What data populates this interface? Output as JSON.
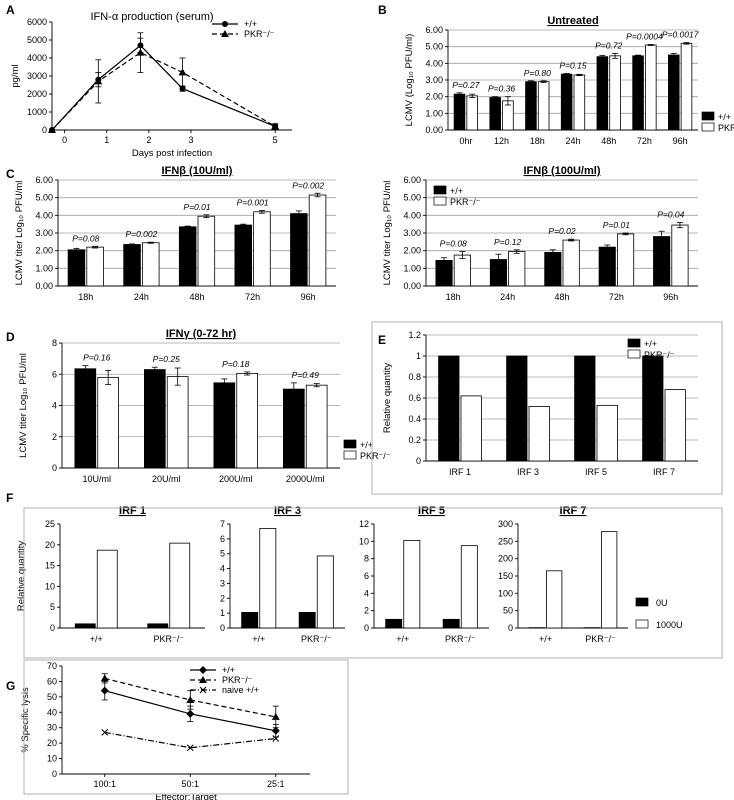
{
  "panels": [
    {
      "id": "A",
      "label": "A",
      "type": "line",
      "title": "IFN-α production (serum)",
      "title_underline": false,
      "xlabel": "Days post infection",
      "ylabel": "pg/ml",
      "ylim": [
        0,
        6000
      ],
      "yticks": [
        "0",
        "1000",
        "2000",
        "3000",
        "4000",
        "5000",
        "6000"
      ],
      "xlim": [
        -0.3,
        5.4
      ],
      "xticks": [
        "0",
        "1",
        "2",
        "3",
        "5"
      ],
      "xtick_values": [
        0,
        1,
        2,
        3,
        5
      ],
      "colors": {
        "wt": "#000000",
        "ko": "#000000"
      },
      "series": [
        {
          "name": "+/+",
          "style": "solid",
          "marker": "circle",
          "x": [
            -0.3,
            0.8,
            1.8,
            2.8,
            5
          ],
          "y": [
            0,
            2800,
            4700,
            2300,
            200
          ],
          "err": [
            0,
            400,
            400,
            150,
            100
          ]
        },
        {
          "name": "PKR⁻/⁻",
          "style": "dashed",
          "marker": "triangle",
          "x": [
            -0.3,
            0.8,
            1.8,
            2.8,
            5
          ],
          "y": [
            0,
            2700,
            4300,
            3200,
            200
          ],
          "err": [
            0,
            1200,
            1100,
            800,
            150
          ]
        }
      ]
    },
    {
      "id": "B",
      "label": "B",
      "type": "bar",
      "title": "Untreated",
      "title_underline": true,
      "ylabel": "LCMV (Log₁₀ PFU/ml)",
      "ylim": [
        0,
        6
      ],
      "yticks": [
        "0.00",
        "1.00",
        "2.00",
        "3.00",
        "4.00",
        "5.00",
        "6.00"
      ],
      "categories": [
        "0hr",
        "12h",
        "18h",
        "24h",
        "48h",
        "72h",
        "96h"
      ],
      "series": [
        {
          "name": "+/+",
          "fill": "#000000",
          "values": [
            2.15,
            1.95,
            2.9,
            3.35,
            4.4,
            4.45,
            4.5
          ],
          "err": [
            0.08,
            0.05,
            0.05,
            0.04,
            0.08,
            0.04,
            0.1
          ]
        },
        {
          "name": "PKR⁻/⁻",
          "fill": "#ffffff",
          "values": [
            2.05,
            1.75,
            2.9,
            3.3,
            4.45,
            5.1,
            5.2
          ],
          "err": [
            0.1,
            0.25,
            0.05,
            0.04,
            0.15,
            0.03,
            0.05
          ]
        }
      ],
      "pvalues": [
        "P=0.27",
        "P=0.36",
        "P=0.80",
        "P=0.15",
        "P=0.72",
        "P=0.0004",
        "P=0.0017"
      ],
      "legend": "right"
    },
    {
      "id": "C1",
      "label": "C",
      "type": "bar",
      "title": "IFNβ (10U/ml)",
      "title_underline": true,
      "ylabel": "LCMV titer Log₁₀ PFU/ml",
      "ylim": [
        0,
        6
      ],
      "yticks": [
        "0.00",
        "1.00",
        "2.00",
        "3.00",
        "4.00",
        "5.00",
        "6.00"
      ],
      "categories": [
        "18h",
        "24h",
        "48h",
        "72h",
        "96h"
      ],
      "series": [
        {
          "name": "+/+",
          "fill": "#000000",
          "values": [
            2.05,
            2.35,
            3.35,
            3.45,
            4.1
          ],
          "err": [
            0.08,
            0.03,
            0.04,
            0.05,
            0.15
          ]
        },
        {
          "name": "PKR⁻/⁻",
          "fill": "#ffffff",
          "values": [
            2.2,
            2.45,
            3.95,
            4.2,
            5.15
          ],
          "err": [
            0.05,
            0.03,
            0.08,
            0.08,
            0.1
          ]
        }
      ],
      "pvalues": [
        "P=0.08",
        "P=0.002",
        "P=0.01",
        "P=0.001",
        "P=0.002"
      ],
      "legend": "none"
    },
    {
      "id": "C2",
      "label": "",
      "type": "bar",
      "title": "IFNβ (100U/ml)",
      "title_underline": true,
      "ylabel": "LCMV titer Log₁₀ PFU/ml",
      "ylim": [
        0,
        6
      ],
      "yticks": [
        "0.00",
        "1.00",
        "2.00",
        "3.00",
        "4.00",
        "5.00",
        "6.00"
      ],
      "categories": [
        "18h",
        "24h",
        "48h",
        "72h",
        "96h"
      ],
      "series": [
        {
          "name": "+/+",
          "fill": "#000000",
          "values": [
            1.45,
            1.5,
            1.9,
            2.2,
            2.8
          ],
          "err": [
            0.15,
            0.3,
            0.15,
            0.12,
            0.3
          ]
        },
        {
          "name": "PKR⁻/⁻",
          "fill": "#ffffff",
          "values": [
            1.75,
            1.95,
            2.6,
            2.95,
            3.45
          ],
          "err": [
            0.2,
            0.1,
            0.05,
            0.05,
            0.15
          ]
        }
      ],
      "pvalues": [
        "P=0.08",
        "P=0.12",
        "P=0.02",
        "P=0.01",
        "P=0.04"
      ],
      "legend": "top-left"
    },
    {
      "id": "D",
      "label": "D",
      "type": "bar",
      "title": "IFNγ (0-72 hr)",
      "title_underline": true,
      "ylabel": "LCMV titer Log₁₀ PFU/ml",
      "ylim": [
        0,
        8
      ],
      "yticks": [
        "0",
        "2",
        "4",
        "6",
        "8"
      ],
      "categories": [
        "10U/ml",
        "20U/ml",
        "200U/ml",
        "2000U/ml"
      ],
      "series": [
        {
          "name": "+/+",
          "fill": "#000000",
          "values": [
            6.35,
            6.3,
            5.45,
            5.05
          ],
          "err": [
            0.2,
            0.15,
            0.25,
            0.4
          ]
        },
        {
          "name": "PKR⁻/⁻",
          "fill": "#ffffff",
          "values": [
            5.8,
            5.85,
            6.05,
            5.3
          ],
          "err": [
            0.45,
            0.55,
            0.1,
            0.1
          ]
        }
      ],
      "pvalues": [
        "P=0.16",
        "P=0.25",
        "P=0.18",
        "P=0.49"
      ],
      "legend": "bottom-right"
    },
    {
      "id": "E",
      "label": "E",
      "type": "bar",
      "title": "",
      "title_underline": false,
      "ylabel": "Relative quantity",
      "ylim": [
        0,
        1.2
      ],
      "yticks": [
        "0",
        "0.2",
        "0.4",
        "0.6",
        "0.8",
        "1",
        "1.2"
      ],
      "categories": [
        "IRF 1",
        "IRF 3",
        "IRF 5",
        "IRF 7"
      ],
      "series": [
        {
          "name": "+/+",
          "fill": "#000000",
          "values": [
            1,
            1,
            1,
            1
          ]
        },
        {
          "name": "PKR⁻/⁻",
          "fill": "#ffffff",
          "values": [
            0.62,
            0.52,
            0.53,
            0.68
          ]
        }
      ],
      "legend": "top-right"
    },
    {
      "id": "F1",
      "label": "F",
      "type": "bar",
      "title": "IRF 1",
      "title_underline": true,
      "ylabel": "Relative quantity",
      "ylim": [
        0,
        25
      ],
      "yticks": [
        "0",
        "5",
        "10",
        "15",
        "20",
        "25"
      ],
      "categories": [
        "+/+",
        "PKR⁻/⁻"
      ],
      "series": [
        {
          "name": "0U",
          "fill": "#000000",
          "values": [
            1,
            1
          ]
        },
        {
          "name": "1000U",
          "fill": "#ffffff",
          "values": [
            18.7,
            20.4
          ]
        }
      ],
      "legend": "none"
    },
    {
      "id": "F3",
      "label": "",
      "type": "bar",
      "title": "IRF 3",
      "title_underline": true,
      "ylabel": "",
      "ylim": [
        0,
        7
      ],
      "yticks": [
        "0",
        "1",
        "2",
        "3",
        "4",
        "5",
        "6",
        "7"
      ],
      "categories": [
        "+/+",
        "PKR⁻/⁻"
      ],
      "series": [
        {
          "name": "0U",
          "fill": "#000000",
          "values": [
            1.05,
            1.05
          ]
        },
        {
          "name": "1000U",
          "fill": "#ffffff",
          "values": [
            6.7,
            4.85
          ]
        }
      ],
      "legend": "none"
    },
    {
      "id": "F5",
      "label": "",
      "type": "bar",
      "title": "IRF 5",
      "title_underline": true,
      "ylabel": "",
      "ylim": [
        0,
        12
      ],
      "yticks": [
        "0",
        "2",
        "4",
        "6",
        "8",
        "10",
        "12"
      ],
      "categories": [
        "+/+",
        "PKR⁻/⁻"
      ],
      "series": [
        {
          "name": "0U",
          "fill": "#000000",
          "values": [
            1,
            1
          ]
        },
        {
          "name": "1000U",
          "fill": "#ffffff",
          "values": [
            10.1,
            9.5
          ]
        }
      ],
      "legend": "none"
    },
    {
      "id": "F7",
      "label": "",
      "type": "bar",
      "title": "IRF 7",
      "title_underline": true,
      "ylabel": "",
      "ylim": [
        0,
        300
      ],
      "yticks": [
        "0",
        "50",
        "100",
        "150",
        "200",
        "250",
        "300"
      ],
      "categories": [
        "+/+",
        "PKR⁻/⁻"
      ],
      "series": [
        {
          "name": "0U",
          "fill": "#000000",
          "values": [
            1,
            1
          ]
        },
        {
          "name": "1000U",
          "fill": "#ffffff",
          "values": [
            165,
            278
          ]
        }
      ],
      "legend": "none"
    },
    {
      "id": "G",
      "label": "G",
      "type": "line",
      "title": "",
      "title_underline": false,
      "xlabel": "Effector:Target",
      "ylabel": "% Specific lysis",
      "ylim": [
        0,
        70
      ],
      "yticks": [
        "0",
        "10",
        "20",
        "30",
        "40",
        "50",
        "60",
        "70"
      ],
      "xlim": [
        -0.5,
        2.4
      ],
      "xticks": [
        "100:1",
        "50:1",
        "25:1"
      ],
      "xtick_values": [
        0,
        1,
        2
      ],
      "series": [
        {
          "name": "+/+",
          "style": "solid",
          "marker": "diamond",
          "x": [
            0,
            1,
            2
          ],
          "y": [
            54,
            39,
            28
          ],
          "err": [
            6,
            5,
            4
          ]
        },
        {
          "name": "PKR⁻/⁻",
          "style": "dashed",
          "marker": "triangle",
          "x": [
            0,
            1,
            2
          ],
          "y": [
            62,
            48,
            37
          ],
          "err": [
            3,
            6,
            7
          ]
        },
        {
          "name": "naive +/+",
          "style": "dashdot",
          "marker": "x",
          "x": [
            0,
            1,
            2
          ],
          "y": [
            27,
            17,
            23
          ],
          "err": [
            0,
            0,
            0
          ]
        }
      ]
    }
  ],
  "f_legend": {
    "items": [
      "0U",
      "1000U"
    ]
  },
  "chart_data": [
    {
      "type": "line",
      "title": "IFN-α production (serum)",
      "xlabel": "Days post infection",
      "ylabel": "pg/ml",
      "ylim": [
        0,
        6000
      ],
      "x": [
        0,
        1,
        2,
        3,
        5
      ],
      "series": [
        {
          "name": "+/+",
          "values": [
            0,
            2800,
            4700,
            2300,
            200
          ]
        },
        {
          "name": "PKR⁻/⁻",
          "values": [
            0,
            2700,
            4300,
            3200,
            200
          ]
        }
      ]
    },
    {
      "type": "bar",
      "title": "Untreated",
      "ylabel": "LCMV (Log₁₀ PFU/ml)",
      "ylim": [
        0,
        6
      ],
      "categories": [
        "0hr",
        "12h",
        "18h",
        "24h",
        "48h",
        "72h",
        "96h"
      ],
      "series": [
        {
          "name": "+/+",
          "values": [
            2.15,
            1.95,
            2.9,
            3.35,
            4.4,
            4.45,
            4.5
          ]
        },
        {
          "name": "PKR⁻/⁻",
          "values": [
            2.05,
            1.75,
            2.9,
            3.3,
            4.45,
            5.1,
            5.2
          ]
        }
      ]
    },
    {
      "type": "bar",
      "title": "IFNβ (10U/ml)",
      "ylabel": "LCMV titer Log₁₀ PFU/ml",
      "ylim": [
        0,
        6
      ],
      "categories": [
        "18h",
        "24h",
        "48h",
        "72h",
        "96h"
      ],
      "series": [
        {
          "name": "+/+",
          "values": [
            2.05,
            2.35,
            3.35,
            3.45,
            4.1
          ]
        },
        {
          "name": "PKR⁻/⁻",
          "values": [
            2.2,
            2.45,
            3.95,
            4.2,
            5.15
          ]
        }
      ]
    },
    {
      "type": "bar",
      "title": "IFNβ (100U/ml)",
      "ylabel": "LCMV titer Log₁₀ PFU/ml",
      "ylim": [
        0,
        6
      ],
      "categories": [
        "18h",
        "24h",
        "48h",
        "72h",
        "96h"
      ],
      "series": [
        {
          "name": "+/+",
          "values": [
            1.45,
            1.5,
            1.9,
            2.2,
            2.8
          ]
        },
        {
          "name": "PKR⁻/⁻",
          "values": [
            1.75,
            1.95,
            2.6,
            2.95,
            3.45
          ]
        }
      ]
    },
    {
      "type": "bar",
      "title": "IFNγ (0-72 hr)",
      "ylabel": "LCMV titer Log₁₀ PFU/ml",
      "ylim": [
        0,
        8
      ],
      "categories": [
        "10U/ml",
        "20U/ml",
        "200U/ml",
        "2000U/ml"
      ],
      "series": [
        {
          "name": "+/+",
          "values": [
            6.35,
            6.3,
            5.45,
            5.05
          ]
        },
        {
          "name": "PKR⁻/⁻",
          "values": [
            5.8,
            5.85,
            6.05,
            5.3
          ]
        }
      ]
    },
    {
      "type": "bar",
      "ylabel": "Relative quantity",
      "ylim": [
        0,
        1.2
      ],
      "categories": [
        "IRF 1",
        "IRF 3",
        "IRF 5",
        "IRF 7"
      ],
      "series": [
        {
          "name": "+/+",
          "values": [
            1,
            1,
            1,
            1
          ]
        },
        {
          "name": "PKR⁻/⁻",
          "values": [
            0.62,
            0.52,
            0.53,
            0.68
          ]
        }
      ]
    },
    {
      "type": "bar",
      "title": "IRF 1",
      "ylabel": "Relative quantity",
      "ylim": [
        0,
        25
      ],
      "categories": [
        "+/+",
        "PKR⁻/⁻"
      ],
      "series": [
        {
          "name": "0U",
          "values": [
            1,
            1
          ]
        },
        {
          "name": "1000U",
          "values": [
            18.7,
            20.4
          ]
        }
      ]
    },
    {
      "type": "bar",
      "title": "IRF 3",
      "ylim": [
        0,
        7
      ],
      "categories": [
        "+/+",
        "PKR⁻/⁻"
      ],
      "series": [
        {
          "name": "0U",
          "values": [
            1.05,
            1.05
          ]
        },
        {
          "name": "1000U",
          "values": [
            6.7,
            4.85
          ]
        }
      ]
    },
    {
      "type": "bar",
      "title": "IRF 5",
      "ylim": [
        0,
        12
      ],
      "categories": [
        "+/+",
        "PKR⁻/⁻"
      ],
      "series": [
        {
          "name": "0U",
          "values": [
            1,
            1
          ]
        },
        {
          "name": "1000U",
          "values": [
            10.1,
            9.5
          ]
        }
      ]
    },
    {
      "type": "bar",
      "title": "IRF 7",
      "ylim": [
        0,
        300
      ],
      "categories": [
        "+/+",
        "PKR⁻/⁻"
      ],
      "series": [
        {
          "name": "0U",
          "values": [
            1,
            1
          ]
        },
        {
          "name": "1000U",
          "values": [
            165,
            278
          ]
        }
      ]
    },
    {
      "type": "line",
      "xlabel": "Effector:Target",
      "ylabel": "% Specific lysis",
      "ylim": [
        0,
        70
      ],
      "categories": [
        "100:1",
        "50:1",
        "25:1"
      ],
      "series": [
        {
          "name": "+/+",
          "values": [
            54,
            39,
            28
          ]
        },
        {
          "name": "PKR⁻/⁻",
          "values": [
            62,
            48,
            37
          ]
        },
        {
          "name": "naive +/+",
          "values": [
            27,
            17,
            23
          ]
        }
      ]
    }
  ]
}
